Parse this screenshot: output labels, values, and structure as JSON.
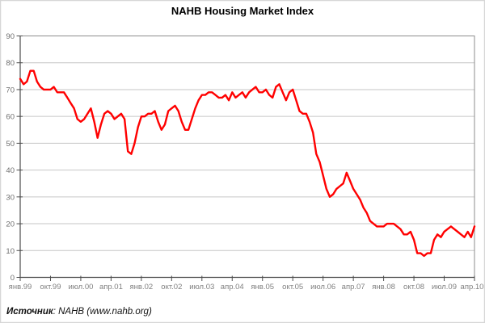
{
  "chart": {
    "title": "NAHB Housing Market Index"
  },
  "source": {
    "label": "Источник",
    "rest": ": NAHB (www.nahb.org)"
  },
  "colors": {
    "line": "#ff0000",
    "grid": "#c6c6c6",
    "plot_border": "#8c8c8c",
    "axis": "#4d4d4d",
    "y_tick_label": "#6e6e6e",
    "x_tick_label": "#808080",
    "title": "#000000",
    "page_border": "#d6d6d6",
    "background": "#ffffff"
  },
  "chart_data": {
    "type": "line",
    "title": "NAHB Housing Market Index",
    "xlabel": "",
    "ylabel": "",
    "ylim": [
      0,
      90
    ],
    "y_ticks": [
      0,
      10,
      20,
      30,
      40,
      50,
      60,
      70,
      80,
      90
    ],
    "grid": "horizontal",
    "legend": "none",
    "x_tick_labels": [
      "янв.99",
      "окт.99",
      "июл.00",
      "апр.01",
      "янв.02",
      "окт.02",
      "июл.03",
      "апр.04",
      "янв.05",
      "окт.05",
      "июл.06",
      "апр.07",
      "янв.08",
      "окт.08",
      "июл.09",
      "апр.10"
    ],
    "x_tick_every_months": 9,
    "x_start": "янв.99",
    "x_end": "апр.10",
    "frequency": "monthly",
    "series": [
      {
        "name": "NAHB Housing Market Index",
        "color": "#ff0000",
        "values": [
          74,
          72,
          73,
          77,
          77,
          73,
          71,
          70,
          70,
          70,
          71,
          69,
          69,
          69,
          67,
          65,
          63,
          59,
          58,
          59,
          61,
          63,
          58,
          52,
          57,
          61,
          62,
          61,
          59,
          60,
          61,
          59,
          47,
          46,
          50,
          56,
          60,
          60,
          61,
          61,
          62,
          58,
          55,
          57,
          62,
          63,
          64,
          62,
          58,
          55,
          55,
          59,
          63,
          66,
          68,
          68,
          69,
          69,
          68,
          67,
          67,
          68,
          66,
          69,
          67,
          68,
          69,
          67,
          69,
          70,
          71,
          69,
          69,
          70,
          68,
          67,
          71,
          72,
          69,
          66,
          69,
          70,
          66,
          62,
          61,
          61,
          58,
          54,
          46,
          43,
          38,
          33,
          30,
          31,
          33,
          34,
          35,
          39,
          36,
          33,
          31,
          29,
          26,
          24,
          21,
          20,
          19,
          19,
          19,
          20,
          20,
          20,
          19,
          18,
          16,
          16,
          17,
          14,
          9,
          9,
          8,
          9,
          9,
          14,
          16,
          15,
          17,
          18,
          19,
          18,
          17,
          16,
          15,
          17,
          15,
          19
        ]
      }
    ],
    "source": "Источник: NAHB (www.nahb.org)"
  }
}
